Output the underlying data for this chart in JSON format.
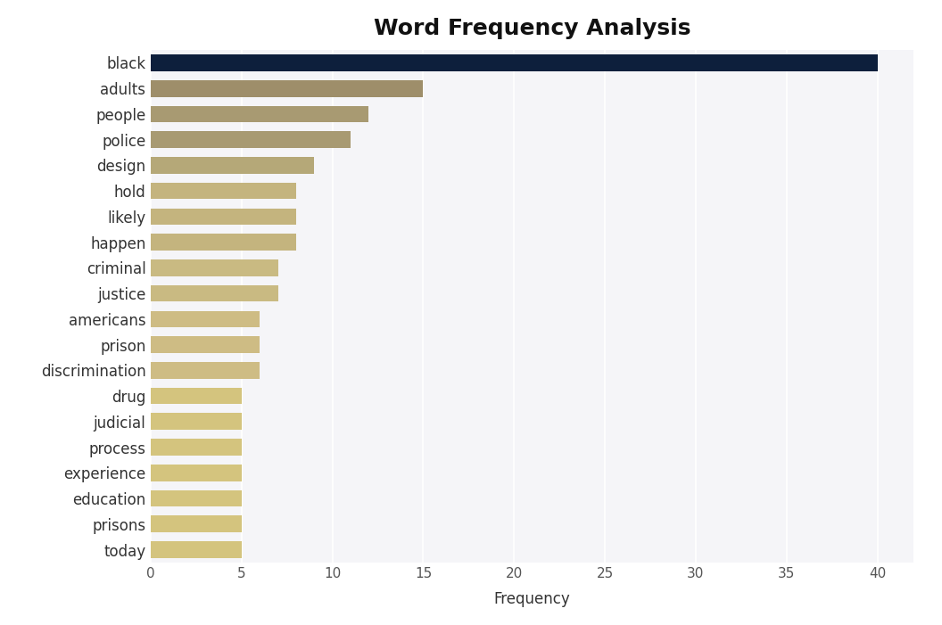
{
  "title": "Word Frequency Analysis",
  "categories": [
    "black",
    "adults",
    "people",
    "police",
    "design",
    "hold",
    "likely",
    "happen",
    "criminal",
    "justice",
    "americans",
    "prison",
    "discrimination",
    "drug",
    "judicial",
    "process",
    "experience",
    "education",
    "prisons",
    "today"
  ],
  "values": [
    40,
    15,
    12,
    11,
    9,
    8,
    8,
    8,
    7,
    7,
    6,
    6,
    6,
    5,
    5,
    5,
    5,
    5,
    5,
    5
  ],
  "colors": [
    "#0d1f3c",
    "#9e8e6a",
    "#a89a72",
    "#a89a72",
    "#b5a878",
    "#c4b47e",
    "#c4b47e",
    "#c4b47e",
    "#c9ba82",
    "#c9ba82",
    "#cebc84",
    "#cebc84",
    "#cebc84",
    "#d4c47e",
    "#d4c47e",
    "#d4c47e",
    "#d4c47e",
    "#d4c47e",
    "#d4c47e",
    "#d4c47e"
  ],
  "xlabel": "Frequency",
  "xlim": [
    0,
    42
  ],
  "xticks": [
    0,
    5,
    10,
    15,
    20,
    25,
    30,
    35,
    40
  ],
  "figure_bg": "#ffffff",
  "axes_bg": "#f5f5f8",
  "grid_color": "#ffffff",
  "title_fontsize": 18,
  "label_fontsize": 12,
  "tick_fontsize": 11,
  "bar_height": 0.65
}
